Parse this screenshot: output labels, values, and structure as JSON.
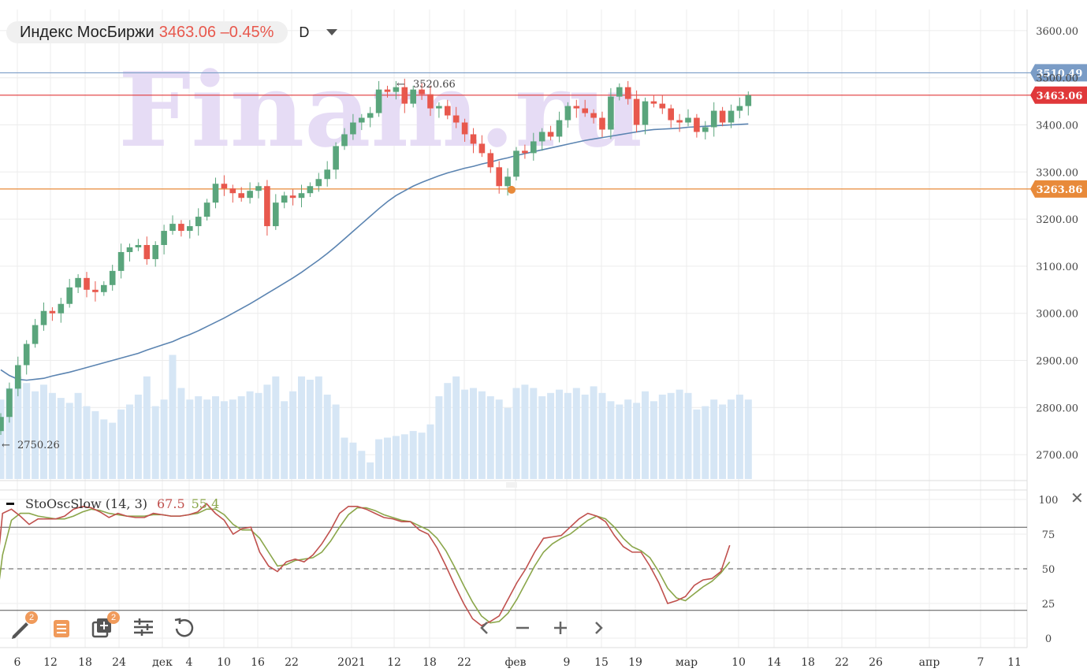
{
  "header": {
    "instrument": "Индекс МосБиржи",
    "price_change": "3463.06 –0.45%",
    "timeframe": "D"
  },
  "watermark": "Finam.ru",
  "colors": {
    "up": "#5aa57c",
    "down": "#e8584d",
    "sma": "#5b84b1",
    "volume": "#d6e6f5",
    "level_blue": "#7a9cc6",
    "level_red": "#e0383a",
    "level_orange": "#e88a3a",
    "sto_k": "#c0504d",
    "sto_d": "#8aa64a",
    "watermark": "#e6dcf5"
  },
  "chart_data": {
    "type": "line",
    "main": {
      "price_axis": {
        "min": 2650,
        "max": 3650,
        "ticks": [
          "3600.00",
          "3500.00",
          "3400.00",
          "3300.00",
          "3200.00",
          "3100.00",
          "3000.00",
          "2900.00",
          "2800.00",
          "2700.00"
        ]
      },
      "x_labels": [
        "6",
        "12",
        "18",
        "24",
        "дек",
        "4",
        "10",
        "16",
        "22",
        "2021",
        "12",
        "18",
        "22",
        "фев",
        "9",
        "15",
        "19",
        "мар",
        "10",
        "14",
        "18",
        "22",
        "26",
        "апр",
        "7",
        "11"
      ],
      "levels": [
        {
          "label": "3510.49",
          "value": 3510.49,
          "color": "#7a9cc6"
        },
        {
          "label": "3463.06",
          "value": 3463.06,
          "color": "#e0383a"
        },
        {
          "label": "3263.86",
          "value": 3263.86,
          "color": "#e88a3a"
        }
      ],
      "annotations": {
        "high_label": "3520.66",
        "low_label": "2750.26"
      },
      "close": [
        2780,
        2840,
        2890,
        2935,
        2975,
        3005,
        3000,
        3020,
        3055,
        3075,
        3050,
        3045,
        3060,
        3090,
        3130,
        3140,
        3145,
        3115,
        3145,
        3175,
        3190,
        3175,
        3185,
        3205,
        3235,
        3275,
        3265,
        3255,
        3245,
        3260,
        3270,
        3185,
        3235,
        3250,
        3245,
        3255,
        3270,
        3285,
        3305,
        3355,
        3380,
        3405,
        3415,
        3425,
        3475,
        3470,
        3480,
        3445,
        3475,
        3465,
        3435,
        3440,
        3420,
        3405,
        3380,
        3360,
        3340,
        3310,
        3270,
        3290,
        3345,
        3340,
        3365,
        3385,
        3375,
        3410,
        3440,
        3435,
        3425,
        3415,
        3390,
        3460,
        3480,
        3455,
        3400,
        3450,
        3445,
        3435,
        3410,
        3405,
        3415,
        3385,
        3395,
        3430,
        3405,
        3430,
        3440,
        3463
      ],
      "sma": [
        2880,
        2868,
        2860,
        2858,
        2860,
        2862,
        2867,
        2871,
        2875,
        2880,
        2885,
        2890,
        2895,
        2900,
        2905,
        2910,
        2915,
        2922,
        2928,
        2934,
        2940,
        2948,
        2955,
        2963,
        2972,
        2981,
        2990,
        3000,
        3010,
        3020,
        3031,
        3042,
        3053,
        3064,
        3075,
        3087,
        3100,
        3113,
        3127,
        3142,
        3158,
        3174,
        3190,
        3206,
        3222,
        3237,
        3250,
        3260,
        3270,
        3278,
        3285,
        3292,
        3298,
        3303,
        3308,
        3312,
        3317,
        3321,
        3326,
        3330,
        3335,
        3339,
        3343,
        3347,
        3351,
        3355,
        3359,
        3363,
        3367,
        3370,
        3373,
        3376,
        3379,
        3382,
        3385,
        3388,
        3390,
        3391,
        3392,
        3393,
        3395,
        3396,
        3397,
        3398,
        3399,
        3400,
        3401,
        3402
      ],
      "volume": [
        0.48,
        0.55,
        0.62,
        0.58,
        0.53,
        0.57,
        0.52,
        0.49,
        0.46,
        0.52,
        0.44,
        0.41,
        0.36,
        0.34,
        0.42,
        0.45,
        0.51,
        0.62,
        0.44,
        0.48,
        0.75,
        0.55,
        0.48,
        0.5,
        0.48,
        0.5,
        0.47,
        0.48,
        0.5,
        0.53,
        0.52,
        0.57,
        0.62,
        0.47,
        0.53,
        0.62,
        0.6,
        0.62,
        0.51,
        0.45,
        0.25,
        0.22,
        0.17,
        0.1,
        0.24,
        0.25,
        0.26,
        0.27,
        0.29,
        0.28,
        0.33,
        0.5,
        0.58,
        0.62,
        0.54,
        0.55,
        0.53,
        0.5,
        0.48,
        0.43,
        0.55,
        0.57,
        0.55,
        0.5,
        0.52,
        0.54,
        0.52,
        0.55,
        0.51,
        0.56,
        0.52,
        0.47,
        0.45,
        0.48,
        0.46,
        0.53,
        0.47,
        0.51,
        0.52,
        0.54,
        0.52,
        0.42,
        0.44,
        0.48,
        0.45,
        0.48,
        0.51,
        0.48
      ]
    },
    "stochastic": {
      "title": "StoOscSlow (14, 3)",
      "k_value": "67.5",
      "d_value": "55.4",
      "axis": {
        "min": 0,
        "max": 100,
        "ticks": [
          "100",
          "75",
          "50",
          "25",
          "0"
        ]
      },
      "levels": [
        80,
        50,
        20
      ],
      "k": [
        25,
        90,
        93,
        88,
        82,
        86,
        86,
        86,
        88,
        93,
        95,
        94,
        91,
        87,
        90,
        88,
        87,
        87,
        90,
        89,
        88,
        88,
        89,
        91,
        97,
        90,
        85,
        75,
        79,
        80,
        62,
        52,
        48,
        55,
        57,
        55,
        60,
        68,
        78,
        90,
        95,
        95,
        93,
        90,
        87,
        86,
        84,
        84,
        78,
        75,
        65,
        52,
        38,
        25,
        14,
        9,
        12,
        16,
        28,
        40,
        50,
        62,
        72,
        73,
        74,
        80,
        86,
        90,
        88,
        84,
        74,
        66,
        62,
        62,
        52,
        40,
        25,
        27,
        30,
        38,
        42,
        43,
        48,
        67
      ],
      "d": [
        10,
        60,
        85,
        90,
        90,
        88,
        87,
        86,
        86,
        88,
        91,
        93,
        92,
        90,
        89,
        88,
        88,
        88,
        89,
        89,
        88,
        88,
        89,
        90,
        93,
        93,
        89,
        82,
        78,
        78,
        72,
        62,
        52,
        53,
        56,
        57,
        58,
        62,
        70,
        80,
        89,
        94,
        94,
        92,
        89,
        87,
        85,
        84,
        81,
        78,
        72,
        63,
        51,
        38,
        26,
        16,
        11,
        12,
        18,
        28,
        40,
        52,
        62,
        68,
        72,
        75,
        80,
        85,
        88,
        86,
        80,
        72,
        66,
        63,
        58,
        48,
        36,
        29,
        27,
        32,
        37,
        41,
        47,
        55
      ]
    }
  },
  "toolbar": {
    "draw_badge": "2",
    "layers_badge": "2"
  }
}
